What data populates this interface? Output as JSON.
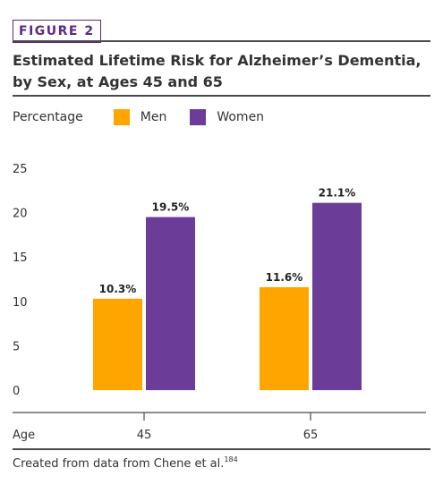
{
  "figure_label": "FIGURE 2",
  "source_text": "Created from data from Chene et al.",
  "source_ref": "184",
  "colors": {
    "men": "#ffa500",
    "women": "#6b3d99",
    "accent": "#5b2b82"
  },
  "chart_data": {
    "type": "bar",
    "title": "Estimated Lifetime Risk for Alzheimer’s Dementia, by Sex, at Ages 45 and 65",
    "ylabel": "Percentage",
    "xlabel": "Age",
    "categories": [
      "45",
      "65"
    ],
    "ylim": [
      0,
      25
    ],
    "yticks": [
      0,
      5,
      10,
      15,
      20,
      25
    ],
    "grid": false,
    "legend": "top",
    "series": [
      {
        "name": "Men",
        "values": [
          10.3,
          11.6
        ],
        "labels": [
          "10.3%",
          "11.6%"
        ]
      },
      {
        "name": "Women",
        "values": [
          19.5,
          21.1
        ],
        "labels": [
          "19.5%",
          "21.1%"
        ]
      }
    ]
  }
}
